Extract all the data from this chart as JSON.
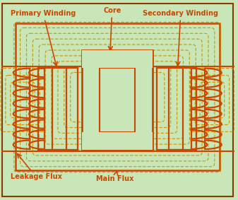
{
  "bg_color": "#c8e6b8",
  "border_color": "#8B3A00",
  "coil_color": "#C84800",
  "dashed_color": "#C8960A",
  "text_color": "#C84800",
  "labels": {
    "primary": "Primary Winding",
    "secondary": "Secondary Winding",
    "core": "Core",
    "leakage": "Leakage Flux",
    "main": "Main Flux"
  },
  "figsize": [
    3.37,
    2.83
  ],
  "dpi": 100
}
